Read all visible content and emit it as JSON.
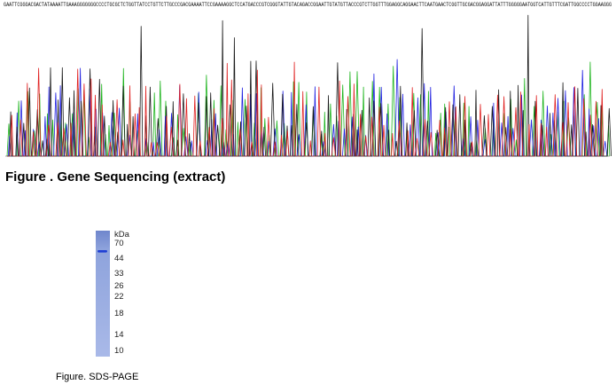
{
  "sequencing_figure": {
    "caption": "Figure . Gene Sequencing (extract)",
    "base_calls": "GAATTCGGGACGACTATAAAATTGAAAGGGGGGGCCCCTGCGCTCTGGTTATCCTGTTCTTGCCCGACGAAAATTCCGAAAAGGCTCCATGACCCGTCGGGTATTGTACAGACCGGAATTGTATGTTACCCGTCTTGGTTTGGAGGCAGGAACTTCAATGAACTCGGTTGCGACGGAGGATTATTTGGGGGAATGGTCATTGTTTCGATTGGCCCCTGGAAGGG",
    "channel_colors": {
      "A": "#1fb51f",
      "C": "#2020e0",
      "G": "#1a1a1a",
      "T": "#e02020"
    }
  },
  "gel_figure": {
    "caption": "Figure. SDS-PAGE",
    "unit_label": "kDa",
    "markers": [
      "70",
      "44",
      "33",
      "26",
      "22",
      "18",
      "14",
      "10"
    ],
    "lane_color": "#9aaee0",
    "band_color": "#1f3fd4",
    "band_kda": 47
  }
}
